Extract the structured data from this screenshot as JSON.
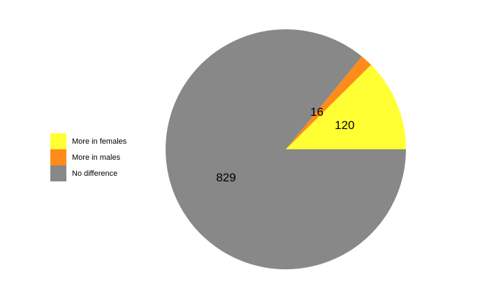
{
  "chart_data": {
    "type": "pie",
    "slices": [
      {
        "label": "More in females",
        "value": 120,
        "color": "#FFFF33"
      },
      {
        "label": "More in males",
        "value": 16,
        "color": "#FF8C1A"
      },
      {
        "label": "No difference",
        "value": 829,
        "color": "#888888"
      }
    ],
    "start_angle_deg": 0,
    "direction": "counterclockwise",
    "legend_position": "left",
    "data_labels_shown": true
  }
}
